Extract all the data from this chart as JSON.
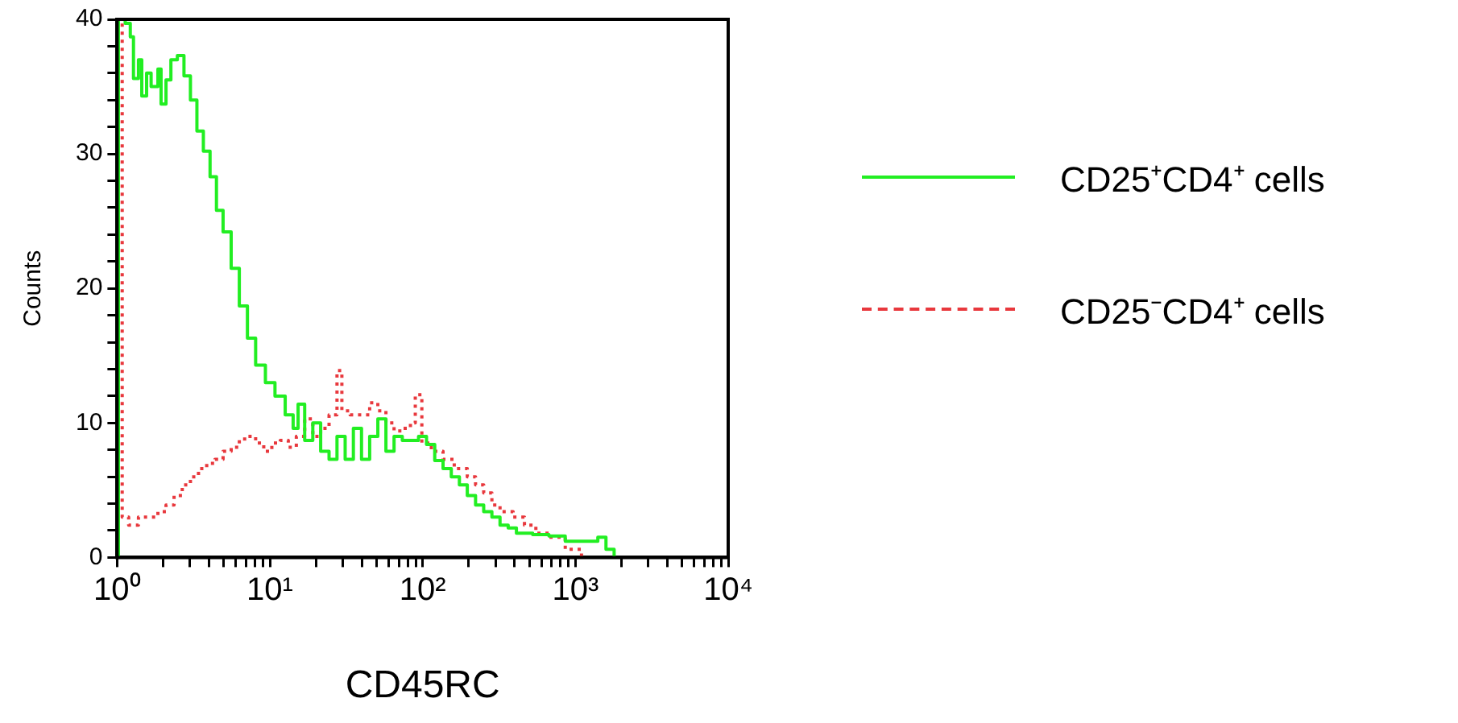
{
  "chart_data": {
    "type": "step",
    "xlabel": "CD45RC",
    "ylabel": "Counts",
    "log": "x",
    "grid": false,
    "legend": "right",
    "marker": "none",
    "xlim": [
      1,
      10000
    ],
    "xticks": [
      {
        "value": 1,
        "label": "10⁰"
      },
      {
        "value": 2,
        "label": null
      },
      {
        "value": 3,
        "label": null
      },
      {
        "value": 4,
        "label": null
      },
      {
        "value": 5,
        "label": null
      },
      {
        "value": 6,
        "label": null
      },
      {
        "value": 7,
        "label": null
      },
      {
        "value": 8,
        "label": null
      },
      {
        "value": 9,
        "label": null
      },
      {
        "value": 10,
        "label": "10¹"
      },
      {
        "value": 20,
        "label": null
      },
      {
        "value": 30,
        "label": null
      },
      {
        "value": 40,
        "label": null
      },
      {
        "value": 50,
        "label": null
      },
      {
        "value": 60,
        "label": null
      },
      {
        "value": 70,
        "label": null
      },
      {
        "value": 80,
        "label": null
      },
      {
        "value": 90,
        "label": null
      },
      {
        "value": 100,
        "label": "10²"
      },
      {
        "value": 200,
        "label": null
      },
      {
        "value": 300,
        "label": null
      },
      {
        "value": 400,
        "label": null
      },
      {
        "value": 500,
        "label": null
      },
      {
        "value": 600,
        "label": null
      },
      {
        "value": 700,
        "label": null
      },
      {
        "value": 800,
        "label": null
      },
      {
        "value": 900,
        "label": null
      },
      {
        "value": 1000,
        "label": "10³"
      },
      {
        "value": 2000,
        "label": null
      },
      {
        "value": 3000,
        "label": null
      },
      {
        "value": 4000,
        "label": null
      },
      {
        "value": 5000,
        "label": null
      },
      {
        "value": 6000,
        "label": null
      },
      {
        "value": 7000,
        "label": null
      },
      {
        "value": 8000,
        "label": null
      },
      {
        "value": 9000,
        "label": null
      },
      {
        "value": 10000,
        "label": "10⁴"
      }
    ],
    "ylim": [
      0,
      40
    ],
    "yticks": [
      0,
      {
        "value": 2,
        "label": null
      },
      {
        "value": 4,
        "label": null
      },
      {
        "value": 6,
        "label": null
      },
      {
        "value": 8,
        "label": null
      },
      10,
      {
        "value": 12,
        "label": null
      },
      {
        "value": 14,
        "label": null
      },
      {
        "value": 16,
        "label": null
      },
      {
        "value": 18,
        "label": null
      },
      20,
      {
        "value": 22,
        "label": null
      },
      {
        "value": 24,
        "label": null
      },
      {
        "value": 26,
        "label": null
      },
      {
        "value": 28,
        "label": null
      },
      30,
      {
        "value": 32,
        "label": null
      },
      {
        "value": 34,
        "label": null
      },
      {
        "value": 36,
        "label": null
      },
      {
        "value": 38,
        "label": null
      },
      40
    ],
    "series": [
      {
        "name": "CD25⁺CD4⁺ cells",
        "color": "#22ee22",
        "line_style": "solid",
        "x": [
          1,
          1.02,
          1.13,
          1.22,
          1.28,
          1.38,
          1.45,
          1.56,
          1.67,
          1.85,
          1.94,
          2.09,
          2.25,
          2.48,
          2.74,
          3.02,
          3.33,
          3.67,
          4.06,
          4.47,
          4.94,
          5.58,
          6.31,
          7.13,
          8.07,
          9.35,
          10.8,
          12.6,
          14.2,
          15.3,
          16.9,
          19.1,
          21.5,
          24.4,
          27.5,
          31.1,
          35.2,
          39.8,
          45,
          50.9,
          57.5,
          65,
          73.6,
          83.2,
          94,
          106,
          120,
          136,
          154,
          174,
          196,
          222,
          251,
          284,
          321,
          363,
          411,
          525,
          671,
          858,
          1096,
          1402,
          1585,
          1792
        ],
        "values": [
          0,
          40,
          39.7,
          38.7,
          35.6,
          37,
          34.3,
          36,
          35,
          36.3,
          33.7,
          35.5,
          37,
          37.3,
          35.8,
          34,
          31.7,
          30.2,
          28.3,
          25.8,
          24.2,
          21.5,
          18.7,
          16.3,
          14.3,
          13,
          12,
          10.6,
          9.6,
          11.4,
          8.7,
          10,
          7.9,
          7.3,
          9,
          7.3,
          9.6,
          7.3,
          9,
          10.3,
          7.9,
          9,
          8.7,
          8.7,
          9,
          8.4,
          7.2,
          6.6,
          6,
          5.4,
          4.6,
          3.9,
          3.4,
          3,
          2.4,
          2.2,
          1.8,
          1.7,
          1.6,
          1.2,
          1.2,
          1.5,
          0.6,
          0
        ]
      },
      {
        "name": "CD25⁻CD4⁺ cells",
        "color": "#e8383d",
        "line_style": "dotted",
        "x": [
          1,
          1.02,
          1.08,
          1.19,
          1.38,
          1.63,
          1.85,
          2.09,
          2.36,
          2.67,
          3.02,
          3.41,
          3.86,
          4.37,
          4.94,
          5.58,
          6.31,
          7.13,
          8.07,
          9.12,
          10.3,
          11.7,
          13.2,
          14.9,
          16.9,
          19.1,
          21.5,
          24.4,
          27.5,
          29.6,
          33.5,
          39.8,
          45,
          50.9,
          57.5,
          65,
          73.6,
          83.2,
          89.5,
          98.8,
          114,
          136,
          161,
          196,
          222,
          251,
          284,
          321,
          391,
          464,
          551,
          671,
          858,
          1096
        ],
        "values": [
          0,
          40,
          3,
          2.4,
          3,
          3,
          3.4,
          3.9,
          4.6,
          5.4,
          6,
          6.6,
          7,
          7.3,
          7.9,
          8.2,
          8.8,
          9,
          8.5,
          7.9,
          8.5,
          8.7,
          8.2,
          9,
          10.3,
          9,
          9.6,
          10.6,
          13.9,
          10.9,
          10.6,
          10.6,
          11.5,
          10.9,
          10,
          9.4,
          9.6,
          10,
          12.1,
          8.5,
          7.9,
          7.3,
          6.6,
          6,
          5.4,
          4.8,
          3.9,
          3.4,
          3,
          2.4,
          1.8,
          1.5,
          0.6,
          0
        ]
      }
    ]
  }
}
